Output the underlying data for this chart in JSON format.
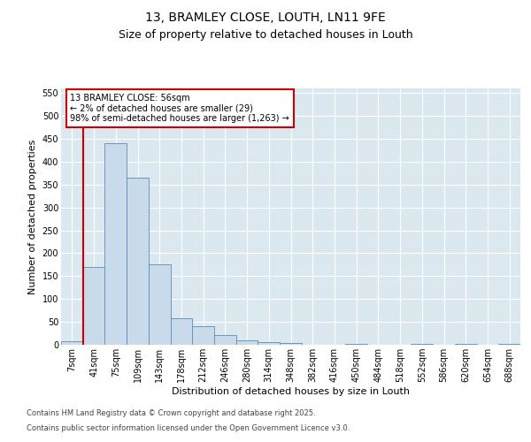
{
  "title": "13, BRAMLEY CLOSE, LOUTH, LN11 9FE",
  "subtitle": "Size of property relative to detached houses in Louth",
  "xlabel": "Distribution of detached houses by size in Louth",
  "ylabel": "Number of detached properties",
  "categories": [
    "7sqm",
    "41sqm",
    "75sqm",
    "109sqm",
    "143sqm",
    "178sqm",
    "212sqm",
    "246sqm",
    "280sqm",
    "314sqm",
    "348sqm",
    "382sqm",
    "416sqm",
    "450sqm",
    "484sqm",
    "518sqm",
    "552sqm",
    "586sqm",
    "620sqm",
    "654sqm",
    "688sqm"
  ],
  "values": [
    8,
    170,
    440,
    365,
    175,
    57,
    40,
    22,
    10,
    5,
    3,
    0,
    0,
    2,
    0,
    0,
    2,
    0,
    2,
    0,
    2
  ],
  "bar_color": "#c9daea",
  "bar_edge_color": "#5b8db8",
  "vline_x_index": 1,
  "vline_color": "#cc0000",
  "annotation_title": "13 BRAMLEY CLOSE: 56sqm",
  "annotation_line1": "← 2% of detached houses are smaller (29)",
  "annotation_line2": "98% of semi-detached houses are larger (1,263) →",
  "annotation_box_facecolor": "white",
  "annotation_box_edgecolor": "#cc0000",
  "ylim": [
    0,
    560
  ],
  "yticks": [
    0,
    50,
    100,
    150,
    200,
    250,
    300,
    350,
    400,
    450,
    500,
    550
  ],
  "fig_bg_color": "#ffffff",
  "plot_bg_color": "#dce8f0",
  "grid_color": "#ffffff",
  "footer_line1": "Contains HM Land Registry data © Crown copyright and database right 2025.",
  "footer_line2": "Contains public sector information licensed under the Open Government Licence v3.0.",
  "title_fontsize": 10,
  "subtitle_fontsize": 9,
  "axis_label_fontsize": 8,
  "tick_fontsize": 7,
  "annotation_fontsize": 7,
  "footer_fontsize": 6
}
